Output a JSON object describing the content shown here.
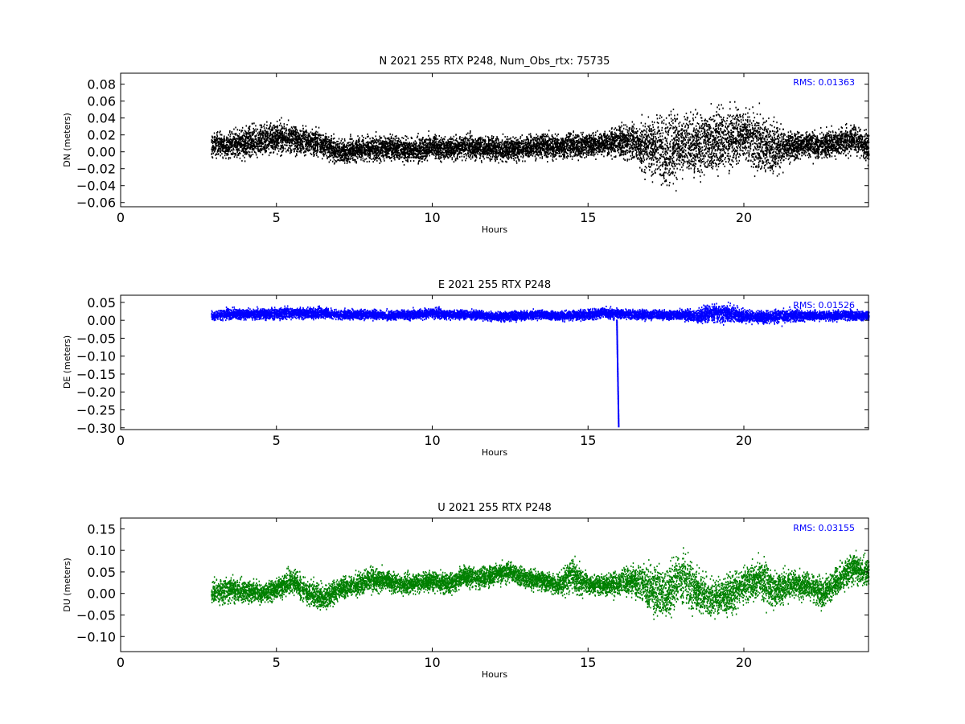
{
  "chart_data": [
    {
      "type": "scatter",
      "title": "N 2021 255 RTX  P248, Num_Obs_rtx: 75735",
      "xlabel": "Hours",
      "ylabel": "DN (meters)",
      "xlim": [
        0,
        24
      ],
      "ylim": [
        -0.065,
        0.093
      ],
      "xticks": [
        0,
        5,
        10,
        15,
        20
      ],
      "xtick_labels": [
        "0",
        "5",
        "10",
        "15",
        "20"
      ],
      "yticks": [
        0.08,
        0.06,
        0.04,
        0.02,
        0.0,
        -0.02,
        -0.04,
        -0.06
      ],
      "ytick_labels": [
        "0.08",
        "0.06",
        "0.04",
        "0.02",
        "0.00",
        "−0.02",
        "−0.04",
        "−0.06"
      ],
      "annotation": "RMS:  0.01363",
      "color": "#000000",
      "grid": false,
      "series": [
        {
          "x": [
            2.9,
            3.5,
            4.0,
            4.5,
            5.0,
            5.5,
            6.0,
            6.5,
            7.0,
            7.5,
            8.0,
            8.5,
            9.0,
            9.5,
            10.0,
            10.5,
            11.0,
            11.5,
            12.0,
            12.5,
            13.0,
            13.5,
            14.0,
            14.5,
            15.0,
            15.5,
            16.0,
            16.5,
            17.0,
            17.5,
            18.0,
            18.5,
            19.0,
            19.5,
            20.0,
            20.5,
            21.0,
            21.5,
            22.0,
            22.5,
            23.0,
            23.5,
            24.0
          ],
          "center": [
            0.008,
            0.008,
            0.01,
            0.015,
            0.017,
            0.015,
            0.012,
            0.008,
            0.0,
            0.002,
            0.003,
            0.005,
            0.003,
            0.002,
            0.005,
            0.004,
            0.006,
            0.005,
            0.004,
            0.002,
            0.005,
            0.008,
            0.006,
            0.008,
            0.008,
            0.01,
            0.012,
            0.01,
            0.005,
            0.003,
            0.01,
            0.008,
            0.012,
            0.015,
            0.018,
            0.01,
            0.005,
            0.008,
            0.008,
            0.007,
            0.012,
            0.015,
            0.005
          ],
          "spread": [
            0.012,
            0.013,
            0.015,
            0.016,
            0.015,
            0.014,
            0.013,
            0.012,
            0.012,
            0.012,
            0.012,
            0.012,
            0.012,
            0.012,
            0.012,
            0.012,
            0.012,
            0.012,
            0.012,
            0.012,
            0.012,
            0.012,
            0.012,
            0.014,
            0.012,
            0.012,
            0.015,
            0.02,
            0.03,
            0.038,
            0.028,
            0.03,
            0.03,
            0.032,
            0.022,
            0.03,
            0.025,
            0.015,
            0.012,
            0.013,
            0.014,
            0.014,
            0.013
          ]
        }
      ]
    },
    {
      "type": "scatter",
      "title": "E 2021 255 RTX  P248",
      "xlabel": "Hours",
      "ylabel": "DE (meters)",
      "xlim": [
        0,
        24
      ],
      "ylim": [
        -0.305,
        0.07
      ],
      "xticks": [
        0,
        5,
        10,
        15,
        20
      ],
      "xtick_labels": [
        "0",
        "5",
        "10",
        "15",
        "20"
      ],
      "yticks": [
        0.05,
        0.0,
        -0.05,
        -0.1,
        -0.15,
        -0.2,
        -0.25,
        -0.3
      ],
      "ytick_labels": [
        "0.05",
        "0.00",
        "−0.05",
        "−0.10",
        "−0.15",
        "−0.20",
        "−0.25",
        "−0.30"
      ],
      "annotation": "RMS:  0.01526",
      "color": "#0000ff",
      "grid": false,
      "series": [
        {
          "x": [
            2.9,
            3.5,
            4.0,
            4.5,
            5.0,
            5.5,
            6.0,
            6.5,
            7.0,
            7.5,
            8.0,
            8.5,
            9.0,
            9.5,
            10.0,
            10.5,
            11.0,
            11.5,
            12.0,
            12.5,
            13.0,
            13.5,
            14.0,
            14.5,
            15.0,
            15.5,
            16.0,
            16.5,
            17.0,
            17.5,
            18.0,
            18.5,
            19.0,
            19.5,
            20.0,
            20.5,
            21.0,
            21.5,
            22.0,
            22.5,
            23.0,
            23.5,
            24.0
          ],
          "center": [
            0.012,
            0.018,
            0.017,
            0.018,
            0.018,
            0.02,
            0.02,
            0.02,
            0.015,
            0.016,
            0.016,
            0.014,
            0.014,
            0.016,
            0.02,
            0.016,
            0.016,
            0.014,
            0.01,
            0.012,
            0.014,
            0.016,
            0.012,
            0.014,
            0.016,
            0.02,
            0.018,
            0.016,
            0.016,
            0.014,
            0.015,
            0.012,
            0.02,
            0.018,
            0.012,
            0.01,
            0.01,
            0.012,
            0.014,
            0.012,
            0.014,
            0.014,
            0.012
          ],
          "spread": [
            0.01,
            0.013,
            0.012,
            0.013,
            0.013,
            0.013,
            0.013,
            0.012,
            0.011,
            0.011,
            0.011,
            0.011,
            0.011,
            0.012,
            0.013,
            0.011,
            0.011,
            0.011,
            0.011,
            0.011,
            0.011,
            0.011,
            0.011,
            0.012,
            0.012,
            0.013,
            0.012,
            0.011,
            0.011,
            0.011,
            0.012,
            0.015,
            0.022,
            0.02,
            0.015,
            0.014,
            0.016,
            0.015,
            0.012,
            0.011,
            0.011,
            0.011,
            0.011
          ]
        },
        {
          "name": "",
          "x": [
            15.9,
            15.92,
            15.94,
            15.96
          ],
          "y": [
            0.0,
            -0.1,
            -0.2,
            -0.3
          ]
        }
      ]
    },
    {
      "type": "scatter",
      "title": "U 2021 255 RTX  P248",
      "xlabel": "Hours",
      "ylabel": "DU (meters)",
      "xlim": [
        0,
        24
      ],
      "ylim": [
        -0.135,
        0.175
      ],
      "xticks": [
        0,
        5,
        10,
        15,
        20
      ],
      "xtick_labels": [
        "0",
        "5",
        "10",
        "15",
        "20"
      ],
      "yticks": [
        0.15,
        0.1,
        0.05,
        0.0,
        -0.05,
        -0.1
      ],
      "ytick_labels": [
        "0.15",
        "0.10",
        "0.05",
        "0.00",
        "−0.05",
        "−0.10"
      ],
      "annotation": "RMS:  0.03155",
      "color": "#008000",
      "grid": false,
      "series": [
        {
          "x": [
            2.9,
            3.5,
            4.0,
            4.5,
            5.0,
            5.5,
            6.0,
            6.5,
            7.0,
            7.5,
            8.0,
            8.5,
            9.0,
            9.5,
            10.0,
            10.5,
            11.0,
            11.5,
            12.0,
            12.5,
            13.0,
            13.5,
            14.0,
            14.5,
            15.0,
            15.5,
            16.0,
            16.5,
            17.0,
            17.5,
            18.0,
            18.5,
            19.0,
            19.5,
            20.0,
            20.5,
            21.0,
            21.5,
            22.0,
            22.5,
            23.0,
            23.5,
            24.0
          ],
          "center": [
            0.002,
            0.01,
            0.005,
            0.0,
            0.01,
            0.03,
            0.0,
            -0.01,
            0.01,
            0.02,
            0.03,
            0.03,
            0.02,
            0.025,
            0.03,
            0.02,
            0.04,
            0.035,
            0.045,
            0.05,
            0.035,
            0.03,
            0.02,
            0.04,
            0.02,
            0.02,
            0.025,
            0.03,
            0.01,
            0.0,
            0.04,
            0.0,
            -0.01,
            0.0,
            0.02,
            0.03,
            0.01,
            0.02,
            0.02,
            0.0,
            0.03,
            0.06,
            0.05
          ],
          "spread": [
            0.025,
            0.025,
            0.02,
            0.02,
            0.02,
            0.025,
            0.025,
            0.025,
            0.02,
            0.02,
            0.025,
            0.02,
            0.02,
            0.02,
            0.02,
            0.02,
            0.022,
            0.02,
            0.02,
            0.02,
            0.02,
            0.02,
            0.02,
            0.035,
            0.02,
            0.02,
            0.025,
            0.03,
            0.045,
            0.05,
            0.05,
            0.04,
            0.035,
            0.04,
            0.035,
            0.04,
            0.035,
            0.03,
            0.025,
            0.025,
            0.03,
            0.03,
            0.025
          ]
        }
      ]
    }
  ]
}
